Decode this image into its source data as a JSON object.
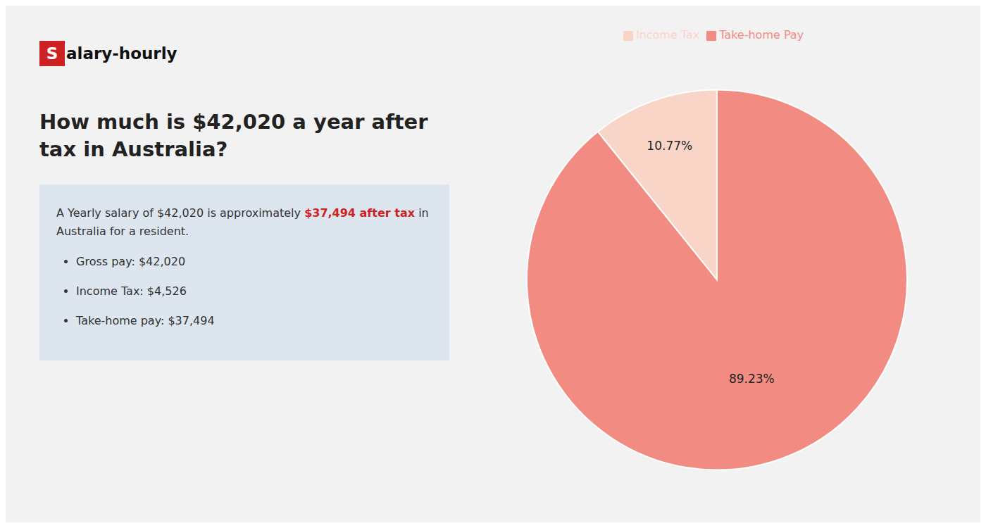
{
  "chart_data": {
    "type": "pie",
    "title": "How much is $42,020 a year after tax in Australia?",
    "categories": [
      "Income Tax",
      "Take-home Pay"
    ],
    "values": [
      10.77,
      89.23
    ],
    "value_labels": [
      "10.77%",
      "89.23%"
    ],
    "colors": [
      "#f9d5c8",
      "#f28b82"
    ],
    "data_labels": true,
    "legend": "top",
    "annotations": [
      "S",
      "alary-hourly",
      "A Yearly salary of $42,020 is approximately ",
      "$37,494 after tax",
      " in",
      "Australia for a resident.",
      "Gross pay: $42,020",
      "Income Tax: $4,526",
      "Take-home pay: $37,494"
    ]
  }
}
